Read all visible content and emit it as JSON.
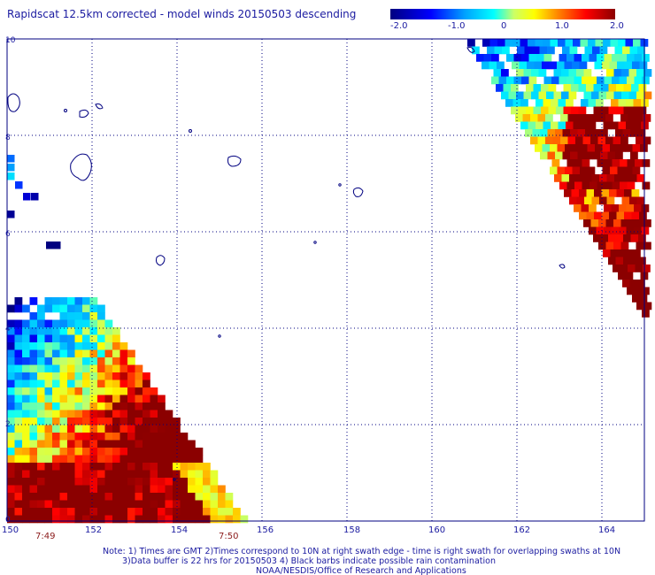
{
  "chart_data": {
    "type": "heatmap",
    "title": "Rapidscat 12.5km corrected - model winds 20150503 descending",
    "xlim": [
      150,
      165
    ],
    "ylim": [
      0,
      10
    ],
    "xticks": [
      "150",
      "152",
      "154",
      "156",
      "158",
      "160",
      "162",
      "164"
    ],
    "yticks": [
      "0",
      "2",
      "4",
      "6",
      "8",
      "10"
    ],
    "grid": true,
    "colorbar": {
      "min": -2.0,
      "max": 2.0,
      "ticks": [
        "-2.0",
        "-1.0",
        "0",
        "1.0",
        "2.0"
      ],
      "colors": [
        "#000080",
        "#0000ff",
        "#00a0ff",
        "#00ffff",
        "#ffff00",
        "#ff8000",
        "#ff0000",
        "#8b0000"
      ]
    },
    "swaths": [
      {
        "name": "west",
        "region": "lower-left triangle, 150-155.5E, 0-5N",
        "value_range": [
          -2.0,
          2.0
        ]
      },
      {
        "name": "east",
        "region": "upper-right triangle, 160.7-165E, 5-10N",
        "value_range": [
          -2.0,
          2.0
        ]
      }
    ],
    "time_labels": [
      "7:49",
      "7:50"
    ],
    "notes": [
      "Note: 1) Times are GMT 2)Times correspond to 10N at right swath edge - time is right swath for overlapping swaths at 10N",
      "3)Data buffer is 22 hrs for 20150503 4) Black barbs indicate possible rain contamination",
      "NOAA/NESDIS/Office of Research and Applications"
    ]
  }
}
